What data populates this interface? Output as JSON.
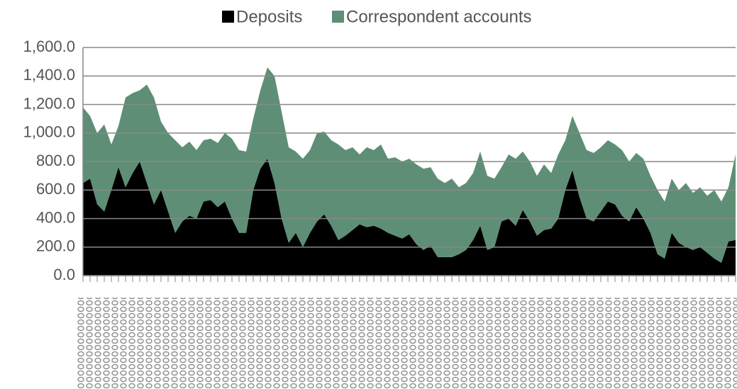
{
  "chart_data": {
    "type": "stacked-area",
    "categories": [
      null,
      null,
      null,
      null,
      null,
      null,
      null,
      null,
      null,
      null,
      null,
      null,
      null,
      null,
      null,
      null,
      null,
      null,
      null,
      null,
      null,
      null,
      null,
      null,
      null,
      null,
      null,
      null,
      null,
      null,
      null,
      null,
      null,
      null,
      null,
      null,
      null,
      null,
      null,
      null,
      null,
      null,
      null,
      null,
      null,
      null,
      null,
      null,
      null,
      null,
      null,
      null,
      null,
      null,
      null,
      null,
      null,
      null,
      null,
      null,
      null,
      null,
      null,
      null,
      null,
      null,
      null,
      null,
      null,
      null,
      null,
      null,
      null,
      null,
      null,
      null,
      null,
      null,
      null,
      null,
      null,
      null,
      null,
      null,
      null,
      null,
      null,
      null,
      null,
      null,
      null,
      null,
      null
    ],
    "series": [
      {
        "name": "Deposits",
        "color": "#000000",
        "values": [
          650,
          680,
          500,
          450,
          600,
          760,
          620,
          720,
          800,
          650,
          500,
          600,
          450,
          300,
          380,
          420,
          400,
          520,
          530,
          480,
          520,
          400,
          300,
          300,
          600,
          750,
          820,
          650,
          400,
          230,
          300,
          200,
          300,
          380,
          430,
          350,
          250,
          280,
          320,
          360,
          340,
          350,
          330,
          300,
          280,
          260,
          290,
          220,
          180,
          210,
          130,
          130,
          130,
          150,
          180,
          250,
          350,
          180,
          200,
          380,
          400,
          350,
          460,
          380,
          280,
          320,
          330,
          400,
          600,
          740,
          550,
          400,
          380,
          450,
          520,
          500,
          420,
          380,
          480,
          400,
          300,
          150,
          120,
          300,
          230,
          200,
          180,
          200,
          160,
          120,
          90,
          240,
          250
        ]
      },
      {
        "name": "Correspondent accounts",
        "color": "#5e8f76",
        "values": [
          530,
          440,
          500,
          610,
          320,
          290,
          630,
          560,
          500,
          690,
          750,
          480,
          550,
          650,
          520,
          520,
          480,
          430,
          430,
          450,
          480,
          560,
          580,
          570,
          500,
          550,
          640,
          750,
          750,
          670,
          570,
          620,
          580,
          620,
          580,
          600,
          670,
          600,
          580,
          490,
          560,
          530,
          590,
          520,
          550,
          540,
          530,
          560,
          570,
          550,
          550,
          520,
          550,
          470,
          470,
          470,
          520,
          520,
          480,
          380,
          450,
          470,
          410,
          420,
          420,
          460,
          390,
          450,
          350,
          380,
          450,
          480,
          480,
          450,
          430,
          420,
          460,
          420,
          380,
          420,
          400,
          450,
          400,
          380,
          370,
          450,
          400,
          420,
          400,
          480,
          430,
          380,
          600
        ]
      }
    ],
    "ylim": [
      0,
      1600
    ],
    "yticks": [
      {
        "value": 0,
        "label": "0.0"
      },
      {
        "value": 200,
        "label": "200.0"
      },
      {
        "value": 400,
        "label": "400.0"
      },
      {
        "value": 600,
        "label": "600.0"
      },
      {
        "value": 800,
        "label": "800.0"
      },
      {
        "value": 1000,
        "label": "1,000.0"
      },
      {
        "value": 1200,
        "label": "1,200.0"
      },
      {
        "value": 1400,
        "label": "1,400.0"
      },
      {
        "value": 1600,
        "label": "1,600.0"
      }
    ],
    "grid": true,
    "legend": "top"
  }
}
